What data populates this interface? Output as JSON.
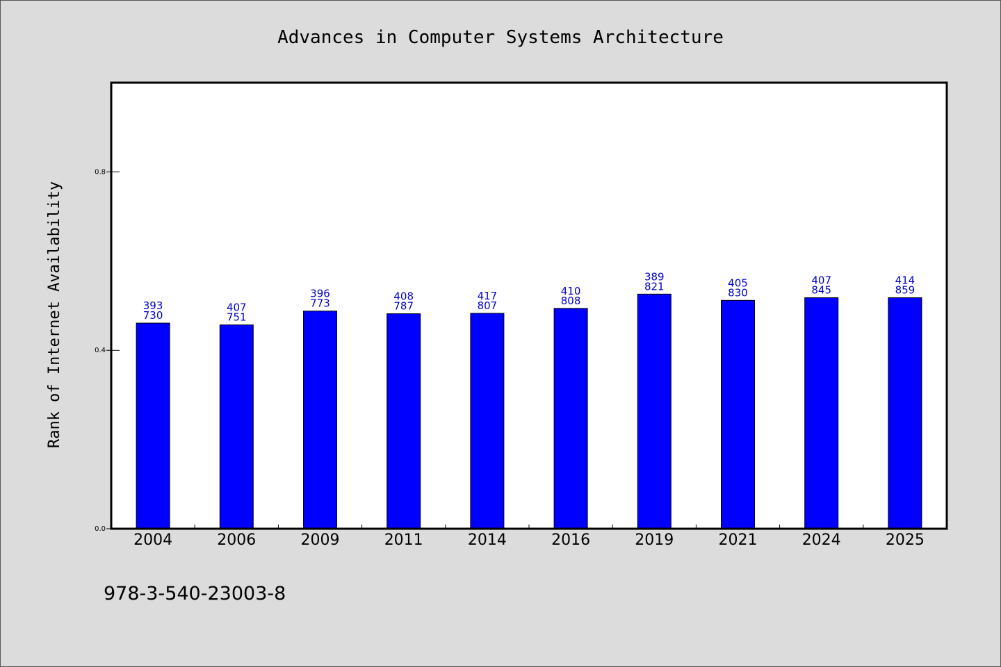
{
  "chart_data": {
    "type": "bar",
    "title": "Advances in Computer Systems Architecture",
    "xlabel": "",
    "ylabel": "Rank of Internet Availability",
    "categories": [
      "2004",
      "2006",
      "2009",
      "2011",
      "2014",
      "2016",
      "2019",
      "2021",
      "2024",
      "2025"
    ],
    "values": [
      0.461,
      0.457,
      0.488,
      0.482,
      0.483,
      0.494,
      0.526,
      0.512,
      0.518,
      0.518
    ],
    "labels_top": [
      "393",
      "407",
      "396",
      "408",
      "417",
      "410",
      "389",
      "405",
      "407",
      "414"
    ],
    "labels_bottom": [
      "730",
      "751",
      "773",
      "787",
      "807",
      "808",
      "821",
      "830",
      "845",
      "859"
    ],
    "ylim": [
      0,
      1.0
    ],
    "yticks": [
      0.0,
      0.4,
      0.8
    ],
    "ytick_labels": [
      "0.0",
      "0.4",
      "0.8"
    ],
    "bar_color": "#0000ff",
    "label_color": "#0000cc",
    "grid": false,
    "legend": "none"
  },
  "footer": {
    "isbn": "978-3-540-23003-8"
  }
}
